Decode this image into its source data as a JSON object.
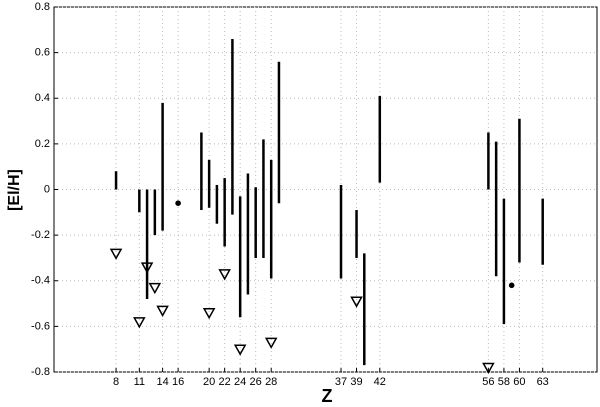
{
  "chart_data": {
    "type": "range",
    "xlabel": "Z",
    "ylabel": "[El/H]",
    "xlim": [
      0,
      70
    ],
    "ylim": [
      -0.8,
      0.8
    ],
    "xticks": [
      8,
      11,
      14,
      16,
      20,
      22,
      24,
      26,
      28,
      37,
      39,
      42,
      56,
      58,
      60,
      63
    ],
    "yticks": [
      0.8,
      0.6,
      0.4,
      0.2,
      0,
      -0.2,
      -0.4,
      -0.6,
      -0.8
    ],
    "grid": true,
    "color": "#000000",
    "ranges": {
      "x": [
        8,
        11,
        12,
        13,
        14,
        19,
        20,
        21,
        22,
        23,
        24,
        25,
        26,
        27,
        28,
        29,
        37,
        39,
        40,
        42,
        56,
        57,
        58,
        60,
        63
      ],
      "high": [
        0.08,
        0,
        0,
        0,
        0.38,
        0.25,
        0.13,
        0.02,
        0.05,
        0.66,
        -0.03,
        0.07,
        0.01,
        0.22,
        0.13,
        0.56,
        0.02,
        -0.09,
        -0.28,
        0.41,
        0.25,
        0.21,
        -0.04,
        0.31,
        -0.04
      ],
      "low": [
        0,
        -0.1,
        -0.48,
        -0.2,
        -0.18,
        -0.09,
        -0.08,
        -0.15,
        -0.25,
        -0.11,
        -0.56,
        -0.46,
        -0.3,
        -0.3,
        -0.39,
        -0.06,
        -0.39,
        -0.3,
        -0.77,
        0.03,
        0,
        -0.38,
        -0.59,
        -0.32,
        -0.33
      ]
    },
    "points": {
      "x": [
        16,
        59
      ],
      "values": [
        -0.06,
        -0.42
      ]
    },
    "limits": {
      "x": [
        8,
        11,
        12,
        13,
        14,
        20,
        22,
        24,
        28,
        39,
        56
      ],
      "values": [
        -0.28,
        -0.58,
        -0.34,
        -0.43,
        -0.53,
        -0.54,
        -0.37,
        -0.7,
        -0.67,
        -0.49,
        -0.78
      ]
    }
  }
}
